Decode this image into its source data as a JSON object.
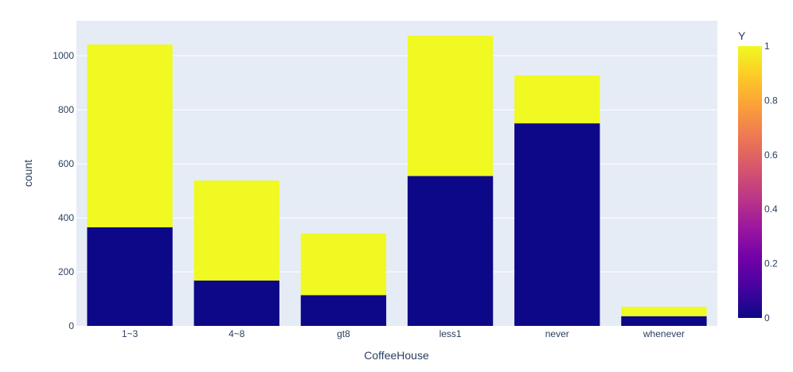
{
  "chart_data": {
    "type": "bar",
    "barmode": "stack",
    "xlabel": "CoffeeHouse",
    "ylabel": "count",
    "categories": [
      "1~3",
      "4~8",
      "gt8",
      "less1",
      "never",
      "whenever"
    ],
    "ylim": [
      0,
      1130
    ],
    "yticks": [
      0,
      200,
      400,
      600,
      800,
      1000
    ],
    "grid": true,
    "series": [
      {
        "y_value": 0,
        "color": "#0d0887",
        "values": [
          365,
          168,
          114,
          555,
          750,
          36
        ]
      },
      {
        "y_value": 1,
        "color": "#f0f921",
        "values": [
          677,
          370,
          228,
          519,
          177,
          35
        ]
      }
    ],
    "colorbar": {
      "title": "Y",
      "range": [
        0,
        1
      ],
      "ticks": [
        "0",
        "0.2",
        "0.4",
        "0.6",
        "0.8",
        "1"
      ],
      "colorscale": [
        "#0d0887",
        "#46039f",
        "#7201a8",
        "#9c179e",
        "#bd3786",
        "#d8576b",
        "#ed7953",
        "#fb9f3a",
        "#fdca26",
        "#f0f921"
      ]
    },
    "plot_background": "#e5ecf6",
    "grid_color": "#ffffff"
  }
}
